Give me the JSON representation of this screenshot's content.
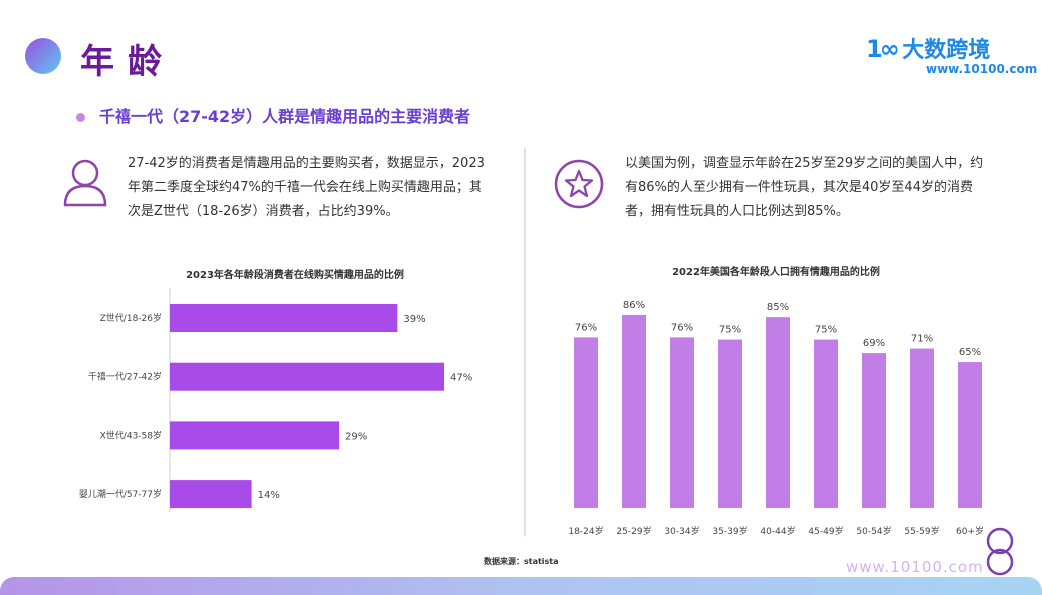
{
  "header": {
    "title": "年龄",
    "logo_text": "大数跨境",
    "logo_url": "www.10100.com"
  },
  "subtitle": "千禧一代（27-42岁）人群是情趣用品的主要消费者",
  "left_text": "27-42岁的消费者是情趣用品的主要购买者，数据显示，2023年第二季度全球约47%的千禧一代会在线上购买情趣用品；其次是Z世代（18-26岁）消费者，占比约39%。",
  "right_text": "以美国为例，调查显示年龄在25岁至29岁之间的美国人中，约有86%的人至少拥有一件性玩具，其次是40岁至44岁的消费者，拥有性玩具的人口比例达到85%。",
  "footer": {
    "source": "数据来源：statista",
    "url": "www.10100.com"
  },
  "colors": {
    "bar": "#a94be8",
    "bar2": "#c07ee6",
    "accent": "#6a1b9a"
  },
  "chart_data": [
    {
      "type": "bar",
      "orientation": "horizontal",
      "title": "2023年各年龄段消费者在线购买情趣用品的比例",
      "categories": [
        "Z世代/18-26岁",
        "千禧一代/27-42岁",
        "X世代/43-58岁",
        "婴儿潮一代/57-77岁"
      ],
      "values": [
        39,
        47,
        29,
        14
      ],
      "labels": [
        "39%",
        "47%",
        "29%",
        "14%"
      ],
      "unit": "%"
    },
    {
      "type": "bar",
      "title": "2022年美国各年龄段人口拥有情趣用品的比例",
      "categories": [
        "18-24岁",
        "25-29岁",
        "30-34岁",
        "35-39岁",
        "40-44岁",
        "45-49岁",
        "50-54岁",
        "55-59岁",
        "60+岁"
      ],
      "values": [
        76,
        86,
        76,
        75,
        85,
        75,
        69,
        71,
        65
      ],
      "labels": [
        "76%",
        "86%",
        "76%",
        "75%",
        "85%",
        "75%",
        "69%",
        "71%",
        "65%"
      ],
      "unit": "%"
    }
  ]
}
